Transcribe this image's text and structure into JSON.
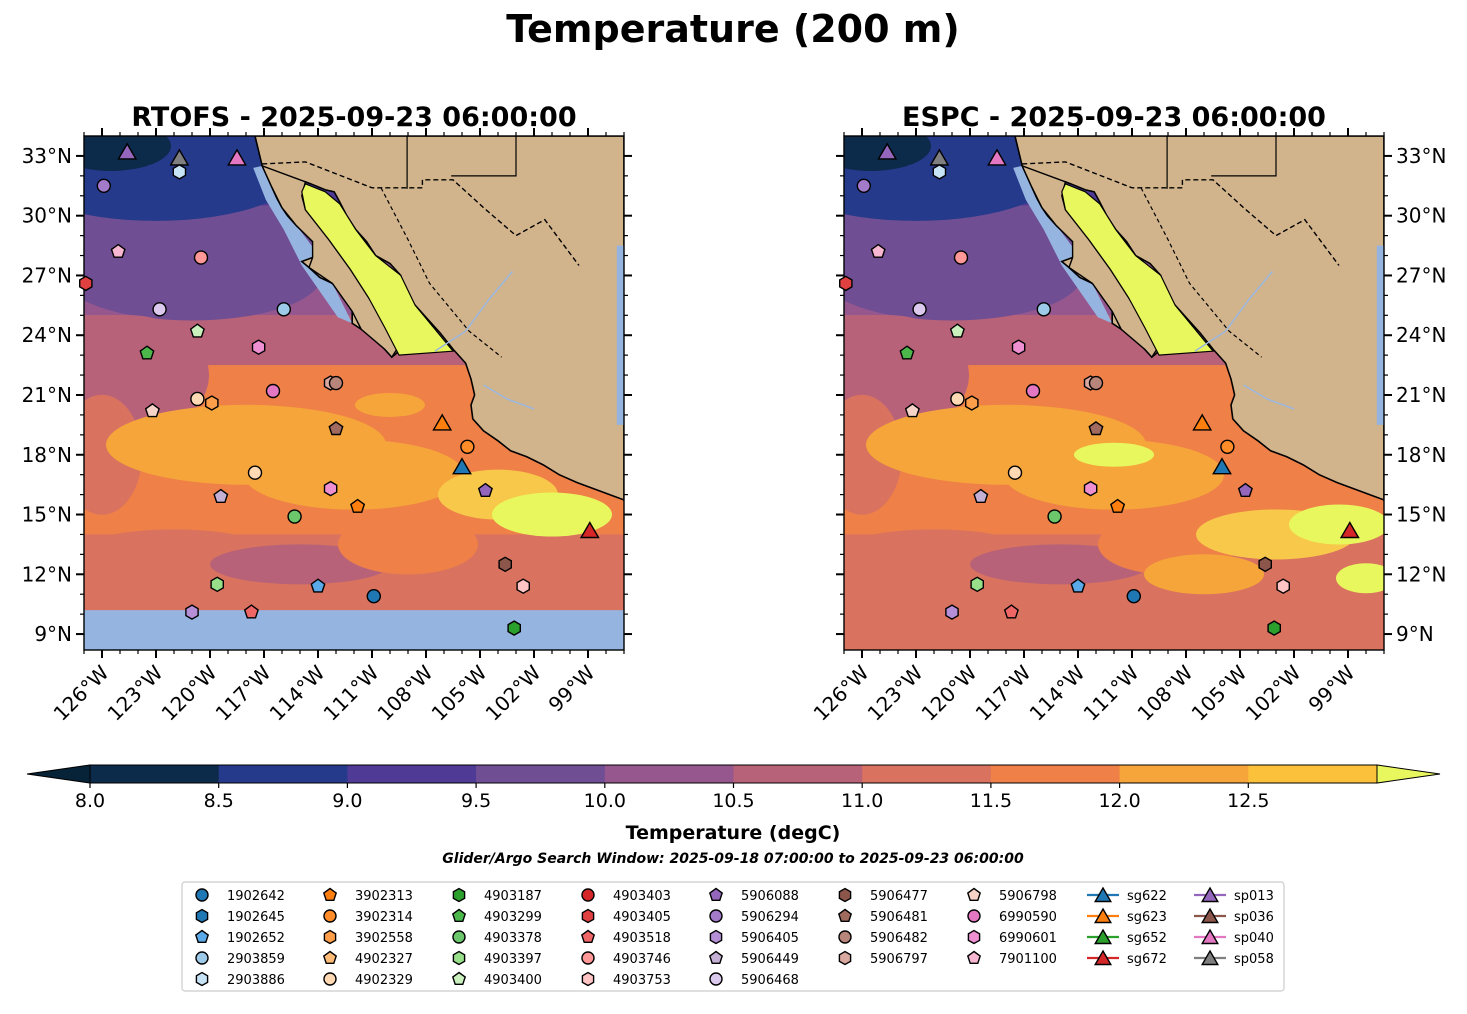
{
  "title": "Temperature (200 m)",
  "panels": [
    {
      "id": "rtofs",
      "title": "RTOFS - 2025-09-23 06:00:00"
    },
    {
      "id": "espc",
      "title": "ESPC - 2025-09-23 06:00:00"
    }
  ],
  "axes": {
    "lon_ticks": [
      "126°W",
      "123°W",
      "120°W",
      "117°W",
      "114°W",
      "111°W",
      "108°W",
      "105°W",
      "102°W",
      "99°W"
    ],
    "lat_ticks": [
      "33°N",
      "30°N",
      "27°N",
      "24°N",
      "21°N",
      "18°N",
      "15°N",
      "12°N",
      "9°N"
    ],
    "lon_range": [
      -127,
      -97
    ],
    "lat_range": [
      8.2,
      34.0
    ]
  },
  "colorbar": {
    "label": "Temperature (degC)",
    "ticks": [
      "8.0",
      "8.5",
      "9.0",
      "9.5",
      "10.0",
      "10.5",
      "11.0",
      "11.5",
      "12.0",
      "12.5"
    ],
    "colors": [
      "#0c2a4a",
      "#263a8c",
      "#4f3a96",
      "#6f4e94",
      "#96578f",
      "#b86279",
      "#d9725f",
      "#ee8048",
      "#f6a53a",
      "#fbc13a"
    ],
    "under_color": "#062338",
    "over_color": "#e9f75e"
  },
  "search_window": "Glider/Argo Search Window: 2025-09-18 07:00:00 to 2025-09-23 06:00:00",
  "legend": [
    {
      "id": "1902642",
      "color": "#1f77b4",
      "shape": "circle"
    },
    {
      "id": "1902645",
      "color": "#1f77b4",
      "shape": "hexagon"
    },
    {
      "id": "1902652",
      "color": "#5aa9e8",
      "shape": "pentagon"
    },
    {
      "id": "2903859",
      "color": "#9ecae9",
      "shape": "circle"
    },
    {
      "id": "2903886",
      "color": "#c6e2f5",
      "shape": "hexagon"
    },
    {
      "id": "3902313",
      "color": "#ff7f0e",
      "shape": "pentagon"
    },
    {
      "id": "3902314",
      "color": "#ff8c28",
      "shape": "circle"
    },
    {
      "id": "3902558",
      "color": "#ff9e4a",
      "shape": "hexagon"
    },
    {
      "id": "4902327",
      "color": "#ffbb78",
      "shape": "pentagon"
    },
    {
      "id": "4902329",
      "color": "#ffd9b3",
      "shape": "circle"
    },
    {
      "id": "4903187",
      "color": "#2ca02c",
      "shape": "hexagon"
    },
    {
      "id": "4903299",
      "color": "#4cb84c",
      "shape": "pentagon"
    },
    {
      "id": "4903378",
      "color": "#6cc76c",
      "shape": "circle"
    },
    {
      "id": "4903397",
      "color": "#98df8a",
      "shape": "hexagon"
    },
    {
      "id": "4903400",
      "color": "#c9f0bd",
      "shape": "pentagon"
    },
    {
      "id": "4903403",
      "color": "#d62728",
      "shape": "circle"
    },
    {
      "id": "4903405",
      "color": "#e04040",
      "shape": "hexagon"
    },
    {
      "id": "4903518",
      "color": "#ee6666",
      "shape": "pentagon"
    },
    {
      "id": "4903746",
      "color": "#ff9896",
      "shape": "circle"
    },
    {
      "id": "4903753",
      "color": "#ffc4c3",
      "shape": "hexagon"
    },
    {
      "id": "5906088",
      "color": "#9467bd",
      "shape": "pentagon"
    },
    {
      "id": "5906294",
      "color": "#a47bcb",
      "shape": "circle"
    },
    {
      "id": "5906405",
      "color": "#b58fd8",
      "shape": "hexagon"
    },
    {
      "id": "5906449",
      "color": "#c5b0d5",
      "shape": "pentagon"
    },
    {
      "id": "5906468",
      "color": "#dcc9ee",
      "shape": "circle"
    },
    {
      "id": "5906477",
      "color": "#8c564b",
      "shape": "hexagon"
    },
    {
      "id": "5906481",
      "color": "#a06a5e",
      "shape": "pentagon"
    },
    {
      "id": "5906482",
      "color": "#b8857a",
      "shape": "circle"
    },
    {
      "id": "5906797",
      "color": "#d9a89f",
      "shape": "hexagon"
    },
    {
      "id": "5906798",
      "color": "#f5d3c7",
      "shape": "pentagon"
    },
    {
      "id": "6990590",
      "color": "#e377c2",
      "shape": "circle"
    },
    {
      "id": "6990601",
      "color": "#ee8fd2",
      "shape": "hexagon"
    },
    {
      "id": "7901100",
      "color": "#f7b6d2",
      "shape": "pentagon"
    },
    {
      "id": "sg622",
      "color": "#1f77b4",
      "shape": "triangle"
    },
    {
      "id": "sg623",
      "color": "#ff7f0e",
      "shape": "triangle"
    },
    {
      "id": "sg652",
      "color": "#2ca02c",
      "shape": "triangle"
    },
    {
      "id": "sg672",
      "color": "#d62728",
      "shape": "triangle"
    },
    {
      "id": "sp013",
      "color": "#9467bd",
      "shape": "triangle"
    },
    {
      "id": "sp036",
      "color": "#8c564b",
      "shape": "triangle"
    },
    {
      "id": "sp040",
      "color": "#e377c2",
      "shape": "triangle"
    },
    {
      "id": "sp058",
      "color": "#7f7f7f",
      "shape": "triangle"
    }
  ],
  "observations": [
    {
      "id": "sp013",
      "lon": -124.6,
      "lat": 33.2
    },
    {
      "id": "sp058",
      "lon": -121.7,
      "lat": 32.9
    },
    {
      "id": "sp040",
      "lon": -118.5,
      "lat": 32.9
    },
    {
      "id": "2903886",
      "lon": -121.7,
      "lat": 32.2
    },
    {
      "id": "5906294",
      "lon": -125.9,
      "lat": 31.5
    },
    {
      "id": "7901100",
      "lon": -125.1,
      "lat": 28.2
    },
    {
      "id": "4903746",
      "lon": -120.5,
      "lat": 27.9
    },
    {
      "id": "4903405",
      "lon": -126.9,
      "lat": 26.6
    },
    {
      "id": "5906468",
      "lon": -122.8,
      "lat": 25.3
    },
    {
      "id": "2903859",
      "lon": -115.9,
      "lat": 25.3
    },
    {
      "id": "4903400",
      "lon": -120.7,
      "lat": 24.2
    },
    {
      "id": "4903299",
      "lon": -123.5,
      "lat": 23.1
    },
    {
      "id": "6990601",
      "lon": -117.3,
      "lat": 23.4
    },
    {
      "id": "5906797",
      "lon": -113.3,
      "lat": 21.6
    },
    {
      "id": "5906482",
      "lon": -113.0,
      "lat": 21.6
    },
    {
      "id": "6990590",
      "lon": -116.5,
      "lat": 21.2
    },
    {
      "id": "5906798",
      "lon": -123.2,
      "lat": 20.2
    },
    {
      "id": "4902329",
      "lon": -120.7,
      "lat": 20.8
    },
    {
      "id": "3902558",
      "lon": -119.9,
      "lat": 20.6
    },
    {
      "id": "5906481",
      "lon": -113.0,
      "lat": 19.3
    },
    {
      "id": "sg623",
      "lon": -107.1,
      "lat": 19.6
    },
    {
      "id": "3902314",
      "lon": -105.7,
      "lat": 18.4
    },
    {
      "id": "sg622",
      "lon": -106.0,
      "lat": 17.4
    },
    {
      "id": "4902329b",
      "lon": -117.5,
      "lat": 17.1
    },
    {
      "id": "6990601b",
      "lon": -113.3,
      "lat": 16.3
    },
    {
      "id": "5906088",
      "lon": -104.7,
      "lat": 16.2
    },
    {
      "id": "5906449",
      "lon": -119.4,
      "lat": 15.9
    },
    {
      "id": "3902313",
      "lon": -111.8,
      "lat": 15.4
    },
    {
      "id": "4903378",
      "lon": -115.3,
      "lat": 14.9
    },
    {
      "id": "sg672",
      "lon": -98.9,
      "lat": 14.2
    },
    {
      "id": "5906477",
      "lon": -103.6,
      "lat": 12.5
    },
    {
      "id": "4903753",
      "lon": -102.6,
      "lat": 11.4
    },
    {
      "id": "4903397",
      "lon": -119.6,
      "lat": 11.5
    },
    {
      "id": "1902652",
      "lon": -114.0,
      "lat": 11.4
    },
    {
      "id": "1902642",
      "lon": -110.9,
      "lat": 10.9
    },
    {
      "id": "5906405",
      "lon": -121.0,
      "lat": 10.1
    },
    {
      "id": "4903518",
      "lon": -117.7,
      "lat": 10.1
    },
    {
      "id": "4903187",
      "lon": -103.1,
      "lat": 9.3
    }
  ]
}
